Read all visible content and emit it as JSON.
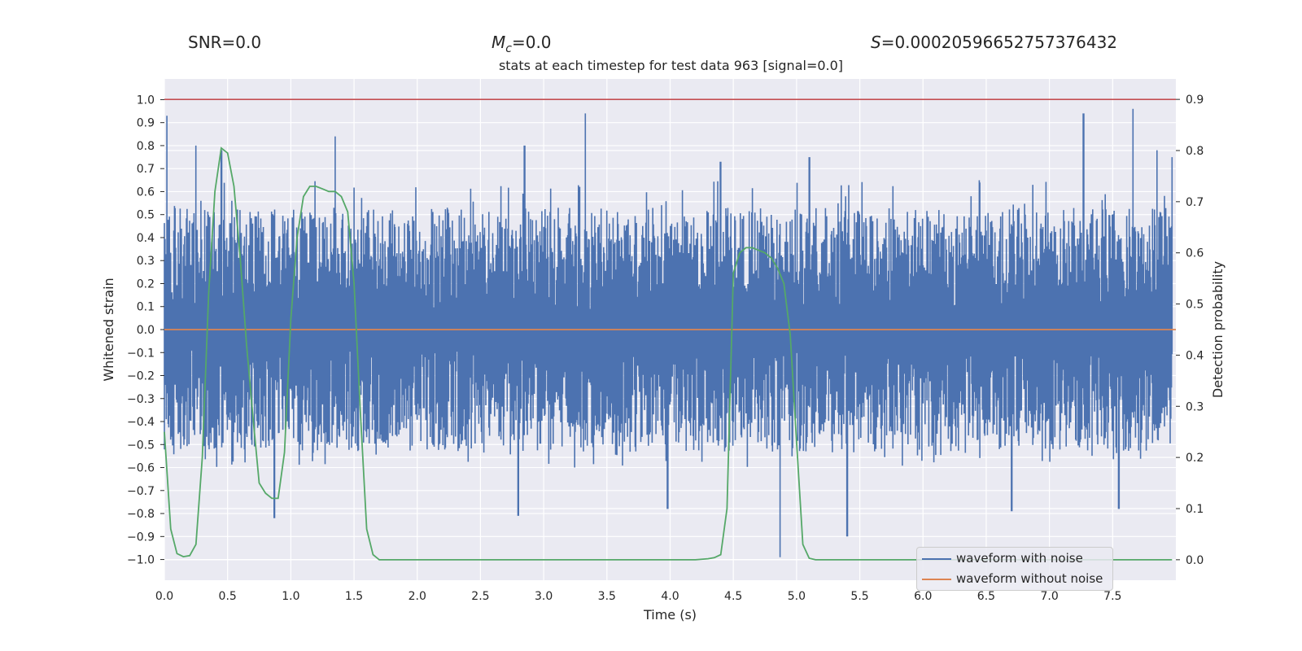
{
  "header": {
    "snr_label": "SNR=0.0",
    "mc_label": "=0.0",
    "s_label": "=0.00020596652757376432"
  },
  "chart_data": {
    "type": "line",
    "title": "stats at each timestep for test data 963 [signal=0.0]",
    "xlabel": "Time (s)",
    "ylabel": "Whitened strain",
    "y2label": "Detection probability",
    "xlim": [
      0.0,
      8.0
    ],
    "ylim": [
      -1.09,
      1.09
    ],
    "y2lim": [
      -0.04,
      0.94
    ],
    "xticks": [
      "0.0",
      "0.5",
      "1.0",
      "1.5",
      "2.0",
      "2.5",
      "3.0",
      "3.5",
      "4.0",
      "4.5",
      "5.0",
      "5.5",
      "6.0",
      "6.5",
      "7.0",
      "7.5"
    ],
    "yticks": [
      "1.0",
      "0.9",
      "0.8",
      "0.7",
      "0.6",
      "0.5",
      "0.4",
      "0.3",
      "0.2",
      "0.1",
      "0.0",
      "−0.1",
      "−0.2",
      "−0.3",
      "−0.4",
      "−0.5",
      "−0.6",
      "−0.7",
      "−0.8",
      "−0.9",
      "−1.0"
    ],
    "y2ticks": [
      "0.9",
      "0.8",
      "0.7",
      "0.6",
      "0.5",
      "0.4",
      "0.3",
      "0.2",
      "0.1",
      "0.0"
    ],
    "threshold": 0.9,
    "grid": true,
    "legend_position": "lower right",
    "colors": {
      "with_noise": "#4c72b0",
      "without_noise": "#dd8452",
      "probability": "#55a868",
      "threshold": "#c44e52",
      "background": "#eaeaf2"
    },
    "series": [
      {
        "name": "waveform with noise",
        "envelope_typical": 0.5,
        "notable_peaks": [
          [
            0.02,
            0.93
          ],
          [
            0.25,
            0.8
          ],
          [
            0.45,
            0.78
          ],
          [
            1.35,
            0.84
          ],
          [
            2.85,
            0.8
          ],
          [
            3.33,
            0.94
          ],
          [
            4.4,
            0.73
          ],
          [
            5.1,
            0.75
          ],
          [
            7.27,
            0.94
          ],
          [
            7.66,
            0.96
          ],
          [
            7.85,
            0.78
          ],
          [
            7.97,
            0.75
          ],
          [
            4.87,
            -0.99
          ],
          [
            5.4,
            -0.9
          ],
          [
            0.87,
            -0.82
          ],
          [
            2.8,
            -0.81
          ],
          [
            3.98,
            -0.78
          ],
          [
            6.7,
            -0.79
          ],
          [
            7.55,
            -0.78
          ]
        ]
      },
      {
        "name": "waveform without noise",
        "x": [
          0.0,
          8.0
        ],
        "y": [
          0.0,
          0.0
        ]
      },
      {
        "name": "detection probability",
        "axis": "right",
        "x": [
          0.0,
          0.05,
          0.1,
          0.15,
          0.2,
          0.25,
          0.3,
          0.35,
          0.4,
          0.45,
          0.5,
          0.55,
          0.6,
          0.65,
          0.7,
          0.75,
          0.8,
          0.85,
          0.9,
          0.95,
          1.0,
          1.05,
          1.1,
          1.15,
          1.2,
          1.25,
          1.3,
          1.35,
          1.4,
          1.45,
          1.5,
          1.55,
          1.6,
          1.65,
          1.7,
          1.75,
          1.8,
          2.0,
          2.5,
          3.0,
          3.5,
          4.0,
          4.2,
          4.3,
          4.35,
          4.4,
          4.45,
          4.5,
          4.55,
          4.6,
          4.65,
          4.7,
          4.75,
          4.8,
          4.85,
          4.9,
          4.95,
          5.0,
          5.05,
          5.1,
          5.15,
          5.2,
          5.25,
          5.3,
          5.35,
          5.5,
          6.0,
          6.5,
          7.0,
          7.5,
          7.97
        ],
        "y": [
          0.25,
          0.06,
          0.012,
          0.006,
          0.008,
          0.03,
          0.2,
          0.52,
          0.72,
          0.805,
          0.795,
          0.73,
          0.59,
          0.42,
          0.28,
          0.15,
          0.13,
          0.12,
          0.12,
          0.21,
          0.47,
          0.63,
          0.71,
          0.73,
          0.73,
          0.725,
          0.72,
          0.72,
          0.71,
          0.68,
          0.54,
          0.29,
          0.06,
          0.01,
          0.0,
          0.0,
          0.0,
          0.0,
          0.0,
          0.0,
          0.0,
          0.0,
          0.0,
          0.002,
          0.004,
          0.01,
          0.1,
          0.56,
          0.6,
          0.61,
          0.61,
          0.605,
          0.6,
          0.59,
          0.57,
          0.54,
          0.44,
          0.23,
          0.03,
          0.003,
          0.0,
          0.0,
          0.0,
          0.0,
          0.0,
          0.0,
          0.0,
          0.0,
          0.0,
          0.0,
          0.0
        ]
      }
    ]
  }
}
